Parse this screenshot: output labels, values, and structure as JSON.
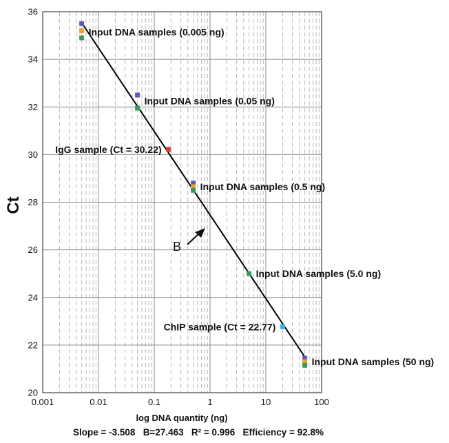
{
  "chart_data": {
    "type": "scatter",
    "xlabel": "log DNA quantity (ng)",
    "ylabel": "Ct",
    "x_scale": "log",
    "xlim": [
      0.001,
      100
    ],
    "ylim": [
      20,
      36
    ],
    "x_ticks": [
      "0.001",
      "0.01",
      "0.1",
      "1",
      "10",
      "100"
    ],
    "y_ticks": [
      "20",
      "22",
      "24",
      "26",
      "28",
      "30",
      "32",
      "34",
      "36"
    ],
    "grid": true,
    "stats_line": "Slope = -3.508   B=27.463   R² = 0.996   Efficiency = 92.8%",
    "fit_line": {
      "slope": -3.508,
      "intercept": 27.463,
      "x_range": [
        0.005,
        50
      ]
    },
    "series": [
      {
        "color": "#5b5bb8",
        "points": [
          {
            "x": 0.005,
            "y": 35.5
          },
          {
            "x": 0.05,
            "y": 32.5
          },
          {
            "x": 0.5,
            "y": 28.8
          },
          {
            "x": 50,
            "y": 21.45
          }
        ]
      },
      {
        "color": "#f0a030",
        "points": [
          {
            "x": 0.005,
            "y": 35.2
          },
          {
            "x": 0.5,
            "y": 28.65
          },
          {
            "x": 50,
            "y": 21.3
          }
        ]
      },
      {
        "color": "#3a9a5a",
        "points": [
          {
            "x": 0.005,
            "y": 34.9
          },
          {
            "x": 0.05,
            "y": 31.95
          },
          {
            "x": 0.5,
            "y": 28.5
          },
          {
            "x": 5,
            "y": 25.0
          },
          {
            "x": 50,
            "y": 21.15
          }
        ]
      },
      {
        "color": "#e04030",
        "points": [
          {
            "x": 0.18,
            "y": 30.22
          }
        ]
      },
      {
        "color": "#30b8e8",
        "points": [
          {
            "x": 20,
            "y": 22.77
          }
        ]
      }
    ],
    "annotations": [
      {
        "text": "Input DNA samples (0.005 ng)",
        "x": 0.005,
        "y": 35.15,
        "anchor": "start"
      },
      {
        "text": "Input DNA samples (0.05 ng)",
        "x": 0.05,
        "y": 32.25,
        "anchor": "start"
      },
      {
        "text": "IgG sample (Ct = 30.22)",
        "x": 0.18,
        "y": 30.22,
        "anchor": "end"
      },
      {
        "text": "Input DNA samples (0.5 ng)",
        "x": 0.5,
        "y": 28.65,
        "anchor": "start"
      },
      {
        "text": "Input DNA samples (5.0 ng)",
        "x": 5,
        "y": 25.0,
        "anchor": "start"
      },
      {
        "text": "ChIP sample (Ct = 22.77)",
        "x": 20,
        "y": 22.77,
        "anchor": "end"
      },
      {
        "text": "Input DNA samples (50 ng)",
        "x": 50,
        "y": 21.3,
        "anchor": "start"
      }
    ],
    "arrow_label": "B"
  }
}
